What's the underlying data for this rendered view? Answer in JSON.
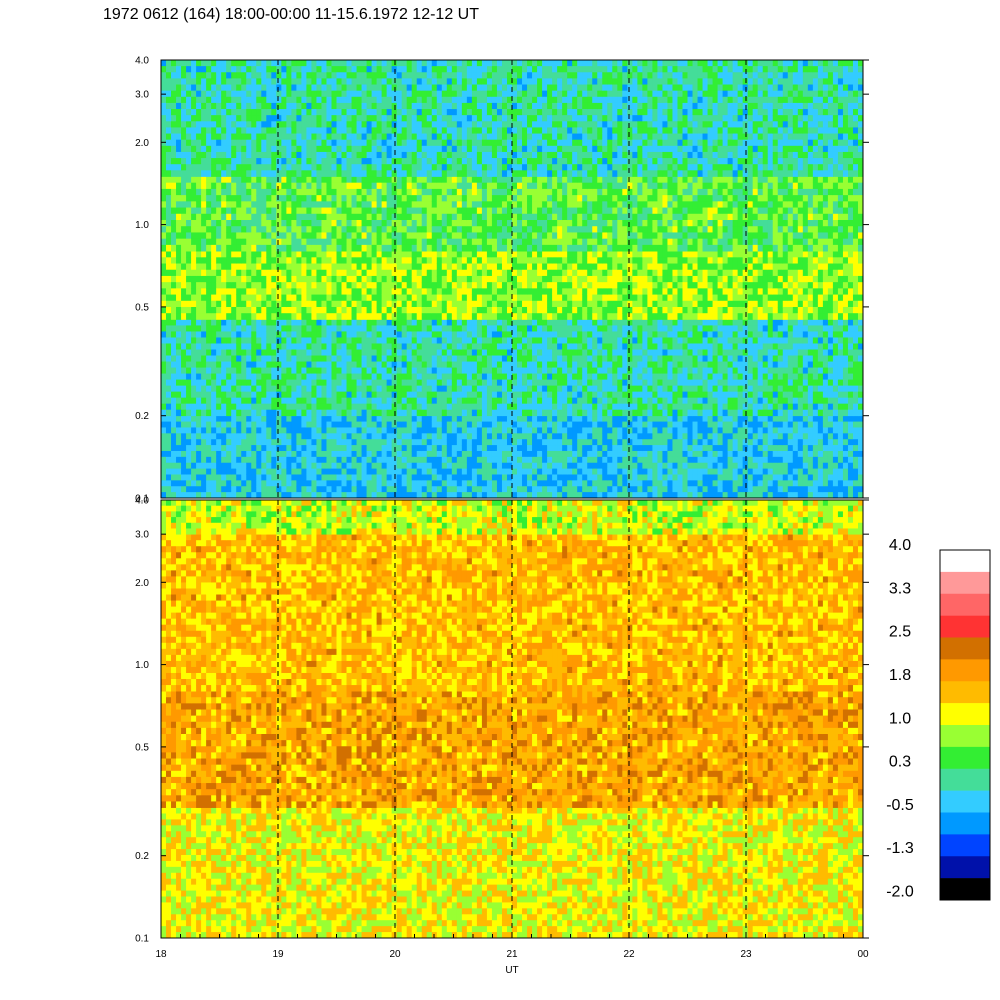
{
  "chart_data": {
    "type": "heatmap",
    "title": "1972 0612 (164) 18:00-00:00 11-15.6.1972  12-12 UT",
    "xlabel": "UT",
    "x_ticks": [
      "18",
      "19",
      "20",
      "21",
      "22",
      "23",
      "00"
    ],
    "x_range": [
      18,
      24
    ],
    "dashed_hour_lines": [
      19,
      20,
      21,
      22,
      23
    ],
    "y_scale": "log",
    "y_range": [
      0.1,
      4.0
    ],
    "y_ticks": [
      "0.1",
      "0.2",
      "0.5",
      "1.0",
      "2.0",
      "3.0",
      "4.0"
    ],
    "y_tick_values": [
      0.1,
      0.2,
      0.5,
      1.0,
      2.0,
      3.0,
      4.0
    ],
    "panels": [
      {
        "name": "upper",
        "bands": [
          {
            "y": [
              0.1,
              0.2
            ],
            "dominant_value": -0.3
          },
          {
            "y": [
              0.2,
              0.45
            ],
            "dominant_value": 0.0
          },
          {
            "y": [
              0.45,
              0.8
            ],
            "dominant_value": 0.8
          },
          {
            "y": [
              0.8,
              1.5
            ],
            "dominant_value": 0.5
          },
          {
            "y": [
              1.5,
              4.0
            ],
            "dominant_value": 0.0
          }
        ]
      },
      {
        "name": "lower",
        "bands": [
          {
            "y": [
              0.1,
              0.3
            ],
            "dominant_value": 1.2
          },
          {
            "y": [
              0.3,
              0.8
            ],
            "dominant_value": 1.8
          },
          {
            "y": [
              0.8,
              3.0
            ],
            "dominant_value": 1.6
          },
          {
            "y": [
              3.0,
              4.0
            ],
            "dominant_value": 1.0
          }
        ]
      }
    ],
    "colorbar": {
      "labels": [
        "4.0",
        "3.3",
        "2.5",
        "1.8",
        "1.0",
        "0.3",
        "-0.5",
        "-1.3",
        "-2.0"
      ],
      "colors": [
        "#ffffff",
        "#ff9999",
        "#ff6666",
        "#ff3333",
        "#d27000",
        "#ff9900",
        "#ffbb00",
        "#ffff00",
        "#99ff33",
        "#33ee33",
        "#44dd99",
        "#33ccff",
        "#0099ff",
        "#0044ff",
        "#0011aa",
        "#000000"
      ]
    }
  }
}
